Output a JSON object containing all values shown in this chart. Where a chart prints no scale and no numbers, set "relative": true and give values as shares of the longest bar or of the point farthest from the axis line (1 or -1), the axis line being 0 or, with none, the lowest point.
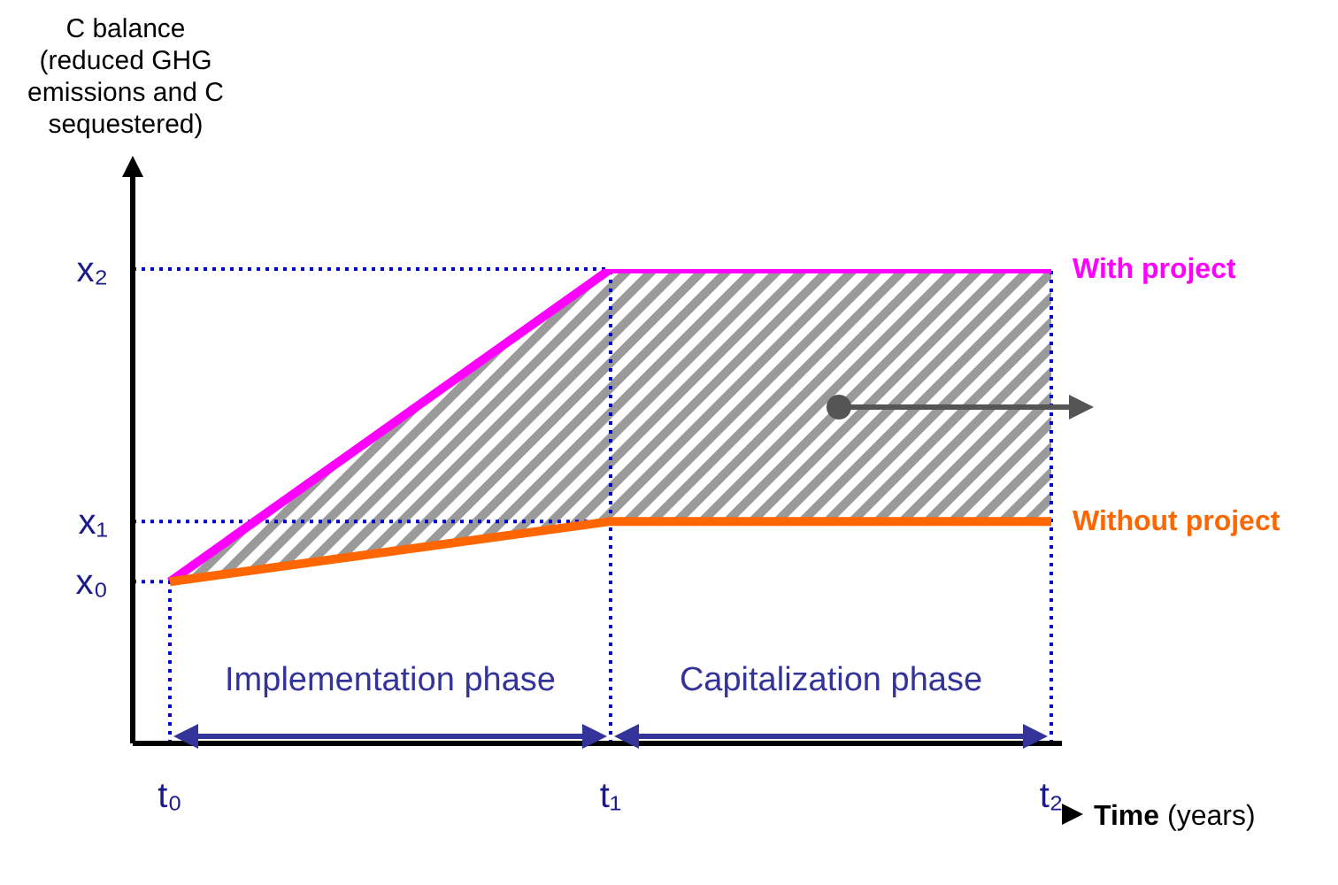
{
  "chart_data": {
    "type": "line",
    "relative": true,
    "ylabel": "C balance (reduced GHG emissions and C sequestered)",
    "xlabel": "Time (years)",
    "categories": [
      "t₀",
      "t₁",
      "t₂"
    ],
    "series": [
      {
        "name": "With project",
        "color": "#ff00ff",
        "values": [
          0.341,
          1,
          1
        ],
        "lower": [
          0.341,
          0.468,
          0.468
        ],
        "upper": [
          0.341,
          1,
          1
        ]
      },
      {
        "name": "Without project",
        "color": "#ff6600",
        "values": [
          0.341,
          0.468,
          0.468
        ]
      }
    ],
    "ref_lines": [
      {
        "axis": "y",
        "value": 1,
        "label": "x₂",
        "color": "#0000cc",
        "line_style": "dotted"
      },
      {
        "axis": "y",
        "value": 0.468,
        "label": "x₁",
        "color": "#0000cc",
        "line_style": "dotted"
      },
      {
        "axis": "y",
        "value": 0.341,
        "label": "x₀",
        "color": "#0000cc",
        "line_style": "dotted"
      },
      {
        "axis": "x",
        "value": "t₀",
        "color": "#0000cc",
        "line_style": "dotted"
      },
      {
        "axis": "x",
        "value": "t₁",
        "color": "#0000cc",
        "line_style": "dotted"
      },
      {
        "axis": "x",
        "value": "t₂",
        "color": "#0000cc",
        "line_style": "dotted"
      }
    ],
    "annotations": [
      "Implementation phase",
      "Capitalization phase"
    ],
    "legend": false
  }
}
